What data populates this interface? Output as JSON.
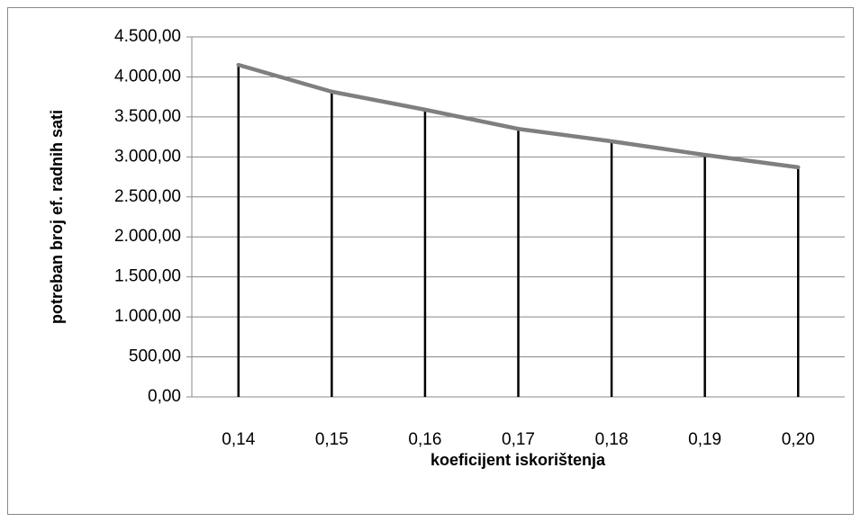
{
  "chart_data": {
    "type": "line",
    "x_label": "koeficijent iskorištenja",
    "y_label": "potreban broj ef. radnih sati",
    "categories": [
      "0,14",
      "0,15",
      "0,16",
      "0,17",
      "0,18",
      "0,19",
      "0,20"
    ],
    "values": [
      4150,
      3815,
      3590,
      3350,
      3195,
      3025,
      2870
    ],
    "color": "#7f7f7f",
    "drop_lines": true,
    "drop_line_color": "#000000",
    "grid": true,
    "ylim": [
      0,
      4500
    ],
    "yticks": [
      {
        "value": 0,
        "label": "0,00"
      },
      {
        "value": 500,
        "label": "500,00"
      },
      {
        "value": 1000,
        "label": "1.000,00"
      },
      {
        "value": 1500,
        "label": "1.500,00"
      },
      {
        "value": 2000,
        "label": "2.000,00"
      },
      {
        "value": 2500,
        "label": "2.500,00"
      },
      {
        "value": 3000,
        "label": "3.000,00"
      },
      {
        "value": 3500,
        "label": "3.500,00"
      },
      {
        "value": 4000,
        "label": "4.000,00"
      },
      {
        "value": 4500,
        "label": "4.500,00"
      }
    ]
  }
}
